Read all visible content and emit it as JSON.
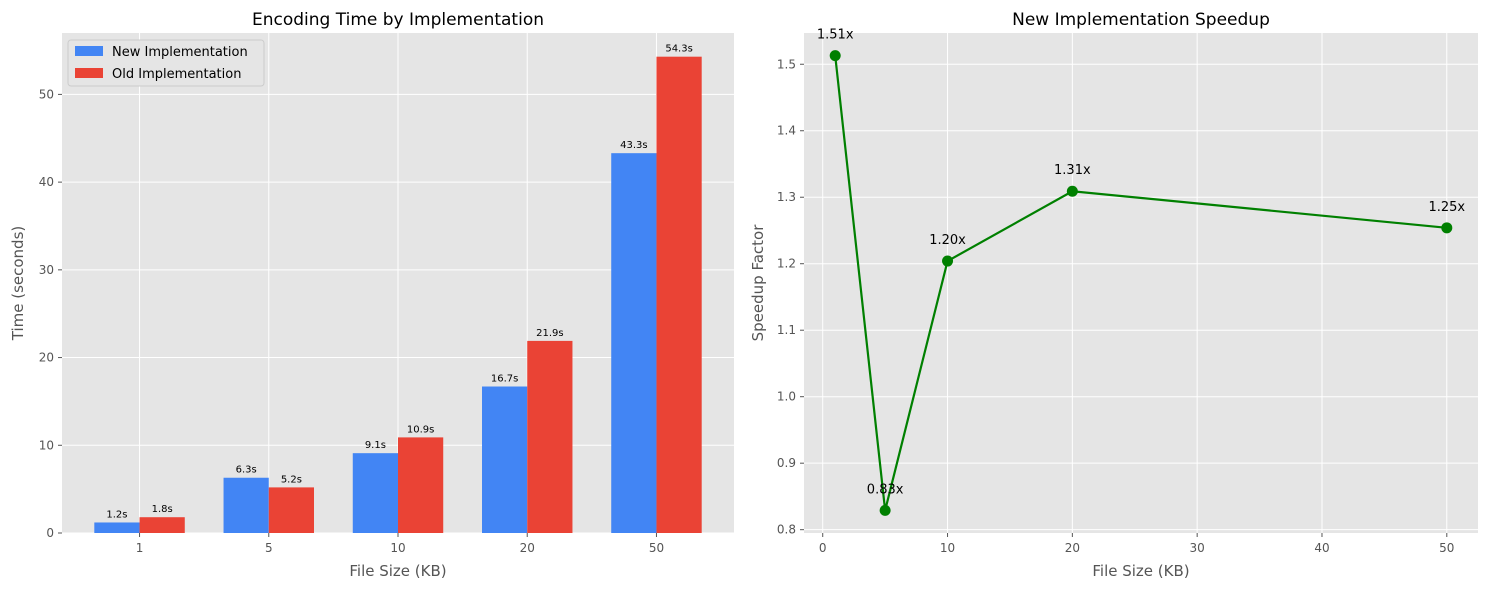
{
  "chart_data": [
    {
      "type": "bar",
      "title": "Encoding Time by Implementation",
      "xlabel": "File Size (KB)",
      "ylabel": "Time (seconds)",
      "categories": [
        "1",
        "5",
        "10",
        "20",
        "50"
      ],
      "series": [
        {
          "name": "New Implementation",
          "color": "#4285f4",
          "values": [
            1.2,
            6.3,
            9.1,
            16.7,
            43.3
          ],
          "labels": [
            "1.2s",
            "6.3s",
            "9.1s",
            "16.7s",
            "43.3s"
          ]
        },
        {
          "name": "Old Implementation",
          "color": "#ea4335",
          "values": [
            1.8,
            5.2,
            10.9,
            21.9,
            54.3
          ],
          "labels": [
            "1.8s",
            "5.2s",
            "10.9s",
            "21.9s",
            "54.3s"
          ]
        }
      ],
      "ylim": [
        0,
        57
      ],
      "yticks": [
        0,
        10,
        20,
        30,
        40,
        50
      ],
      "grid": true,
      "legend": "top-left"
    },
    {
      "type": "line",
      "title": "New Implementation Speedup",
      "xlabel": "File Size (KB)",
      "ylabel": "Speedup Factor",
      "series": [
        {
          "color": "#008000",
          "x": [
            1,
            5,
            10,
            20,
            50
          ],
          "y": [
            1.513,
            0.829,
            1.204,
            1.309,
            1.254
          ],
          "labels": [
            "1.51x",
            "0.83x",
            "1.20x",
            "1.31x",
            "1.25x"
          ]
        }
      ],
      "xlim": [
        -1.5,
        52.5
      ],
      "ylim": [
        0.795,
        1.547
      ],
      "xticks": [
        0,
        10,
        20,
        30,
        40,
        50
      ],
      "yticks": [
        0.8,
        0.9,
        1.0,
        1.1,
        1.2,
        1.3,
        1.4,
        1.5
      ],
      "ytick_labels": [
        "0.8",
        "0.9",
        "1.0",
        "1.1",
        "1.2",
        "1.3",
        "1.4",
        "1.5"
      ],
      "grid": true
    }
  ]
}
